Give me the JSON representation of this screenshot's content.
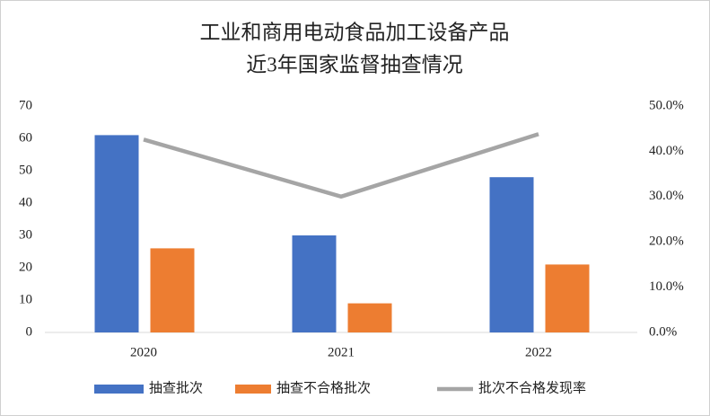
{
  "chart_data": {
    "type": "bar",
    "title": [
      "工业和商用电动食品加工设备产品",
      "近3年国家监督抽查情况"
    ],
    "categories": [
      "2020",
      "2021",
      "2022"
    ],
    "series": [
      {
        "name": "抽查批次",
        "color": "#4472c4",
        "values": [
          61,
          30,
          48
        ]
      },
      {
        "name": "抽查不合格批次",
        "color": "#ed7d31",
        "values": [
          26,
          9,
          21
        ]
      },
      {
        "name": "批次不合格发现率",
        "color": "#a5a5a5",
        "type": "line",
        "axis": "y2",
        "values": [
          42.6,
          30.0,
          43.8
        ]
      }
    ],
    "ylim": [
      0,
      70
    ],
    "yticks": [
      0,
      10,
      20,
      30,
      40,
      50,
      60,
      70
    ],
    "y2lim": [
      0,
      50
    ],
    "y2ticks": [
      {
        "value": 0,
        "label": "0.0%"
      },
      {
        "value": 10,
        "label": "10.0%"
      },
      {
        "value": 20,
        "label": "20.0%"
      },
      {
        "value": 30,
        "label": "30.0%"
      },
      {
        "value": 40,
        "label": "40.0%"
      },
      {
        "value": 50,
        "label": "50.0%"
      }
    ],
    "grid": false,
    "legend": "bottom"
  }
}
